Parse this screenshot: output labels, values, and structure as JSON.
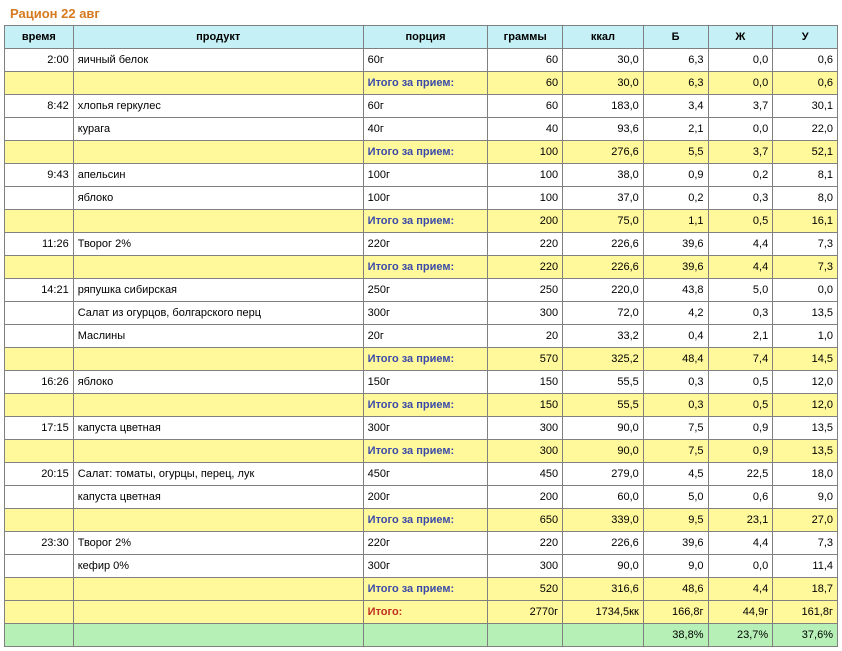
{
  "title": "Рацион 22 авг",
  "headers": {
    "time": "время",
    "product": "продукт",
    "portion": "порция",
    "grams": "граммы",
    "kcal": "ккал",
    "b": "Б",
    "zh": "Ж",
    "u": "У"
  },
  "subtotal_label": "Итого за прием:",
  "total_label": "Итого:",
  "rows": [
    {
      "type": "item",
      "time": "2:00",
      "product": "яичный белок",
      "portion": "60г",
      "grams": "60",
      "kcal": "30,0",
      "b": "6,3",
      "zh": "0,0",
      "u": "0,6"
    },
    {
      "type": "sub",
      "grams": "60",
      "kcal": "30,0",
      "b": "6,3",
      "zh": "0,0",
      "u": "0,6"
    },
    {
      "type": "item",
      "time": "8:42",
      "product": "хлопья геркулес",
      "portion": "60г",
      "grams": "60",
      "kcal": "183,0",
      "b": "3,4",
      "zh": "3,7",
      "u": "30,1"
    },
    {
      "type": "item",
      "time": "",
      "product": "курага",
      "portion": "40г",
      "grams": "40",
      "kcal": "93,6",
      "b": "2,1",
      "zh": "0,0",
      "u": "22,0"
    },
    {
      "type": "sub",
      "grams": "100",
      "kcal": "276,6",
      "b": "5,5",
      "zh": "3,7",
      "u": "52,1"
    },
    {
      "type": "item",
      "time": "9:43",
      "product": "апельсин",
      "portion": "100г",
      "grams": "100",
      "kcal": "38,0",
      "b": "0,9",
      "zh": "0,2",
      "u": "8,1"
    },
    {
      "type": "item",
      "time": "",
      "product": "яблоко",
      "portion": "100г",
      "grams": "100",
      "kcal": "37,0",
      "b": "0,2",
      "zh": "0,3",
      "u": "8,0"
    },
    {
      "type": "sub",
      "grams": "200",
      "kcal": "75,0",
      "b": "1,1",
      "zh": "0,5",
      "u": "16,1"
    },
    {
      "type": "item",
      "time": "11:26",
      "product": "Творог 2%",
      "portion": "220г",
      "grams": "220",
      "kcal": "226,6",
      "b": "39,6",
      "zh": "4,4",
      "u": "7,3"
    },
    {
      "type": "sub",
      "grams": "220",
      "kcal": "226,6",
      "b": "39,6",
      "zh": "4,4",
      "u": "7,3"
    },
    {
      "type": "item",
      "time": "14:21",
      "product": "ряпушка сибирская",
      "portion": "250г",
      "grams": "250",
      "kcal": "220,0",
      "b": "43,8",
      "zh": "5,0",
      "u": "0,0"
    },
    {
      "type": "item",
      "time": "",
      "product": "Салат из огурцов, болгарского перц",
      "portion": "300г",
      "grams": "300",
      "kcal": "72,0",
      "b": "4,2",
      "zh": "0,3",
      "u": "13,5"
    },
    {
      "type": "item",
      "time": "",
      "product": "Маслины",
      "portion": "20г",
      "grams": "20",
      "kcal": "33,2",
      "b": "0,4",
      "zh": "2,1",
      "u": "1,0"
    },
    {
      "type": "sub",
      "grams": "570",
      "kcal": "325,2",
      "b": "48,4",
      "zh": "7,4",
      "u": "14,5"
    },
    {
      "type": "item",
      "time": "16:26",
      "product": "яблоко",
      "portion": "150г",
      "grams": "150",
      "kcal": "55,5",
      "b": "0,3",
      "zh": "0,5",
      "u": "12,0"
    },
    {
      "type": "sub",
      "grams": "150",
      "kcal": "55,5",
      "b": "0,3",
      "zh": "0,5",
      "u": "12,0"
    },
    {
      "type": "item",
      "time": "17:15",
      "product": "капуста цветная",
      "portion": "300г",
      "grams": "300",
      "kcal": "90,0",
      "b": "7,5",
      "zh": "0,9",
      "u": "13,5"
    },
    {
      "type": "sub",
      "grams": "300",
      "kcal": "90,0",
      "b": "7,5",
      "zh": "0,9",
      "u": "13,5"
    },
    {
      "type": "item",
      "time": "20:15",
      "product": "Салат: томаты, огурцы, перец, лук",
      "portion": "450г",
      "grams": "450",
      "kcal": "279,0",
      "b": "4,5",
      "zh": "22,5",
      "u": "18,0"
    },
    {
      "type": "item",
      "time": "",
      "product": "капуста цветная",
      "portion": "200г",
      "grams": "200",
      "kcal": "60,0",
      "b": "5,0",
      "zh": "0,6",
      "u": "9,0"
    },
    {
      "type": "sub",
      "grams": "650",
      "kcal": "339,0",
      "b": "9,5",
      "zh": "23,1",
      "u": "27,0"
    },
    {
      "type": "item",
      "time": "23:30",
      "product": "Творог 2%",
      "portion": "220г",
      "grams": "220",
      "kcal": "226,6",
      "b": "39,6",
      "zh": "4,4",
      "u": "7,3"
    },
    {
      "type": "item",
      "time": "",
      "product": "кефир 0%",
      "portion": "300г",
      "grams": "300",
      "kcal": "90,0",
      "b": "9,0",
      "zh": "0,0",
      "u": "11,4"
    },
    {
      "type": "sub",
      "grams": "520",
      "kcal": "316,6",
      "b": "48,6",
      "zh": "4,4",
      "u": "18,7"
    }
  ],
  "total": {
    "grams": "2770г",
    "kcal": "1734,5кк",
    "b": "166,8г",
    "zh": "44,9г",
    "u": "161,8г"
  },
  "percent": {
    "b": "38,8%",
    "zh": "23,7%",
    "u": "37,6%"
  },
  "colors": {
    "header_bg": "#c5f0f5",
    "yellow_bg": "#fff99b",
    "green_bg": "#b6f0b6",
    "title_color": "#d67a1f",
    "subtotal_text": "#3a4aa8",
    "total_text": "#c03020",
    "border": "#808080"
  }
}
